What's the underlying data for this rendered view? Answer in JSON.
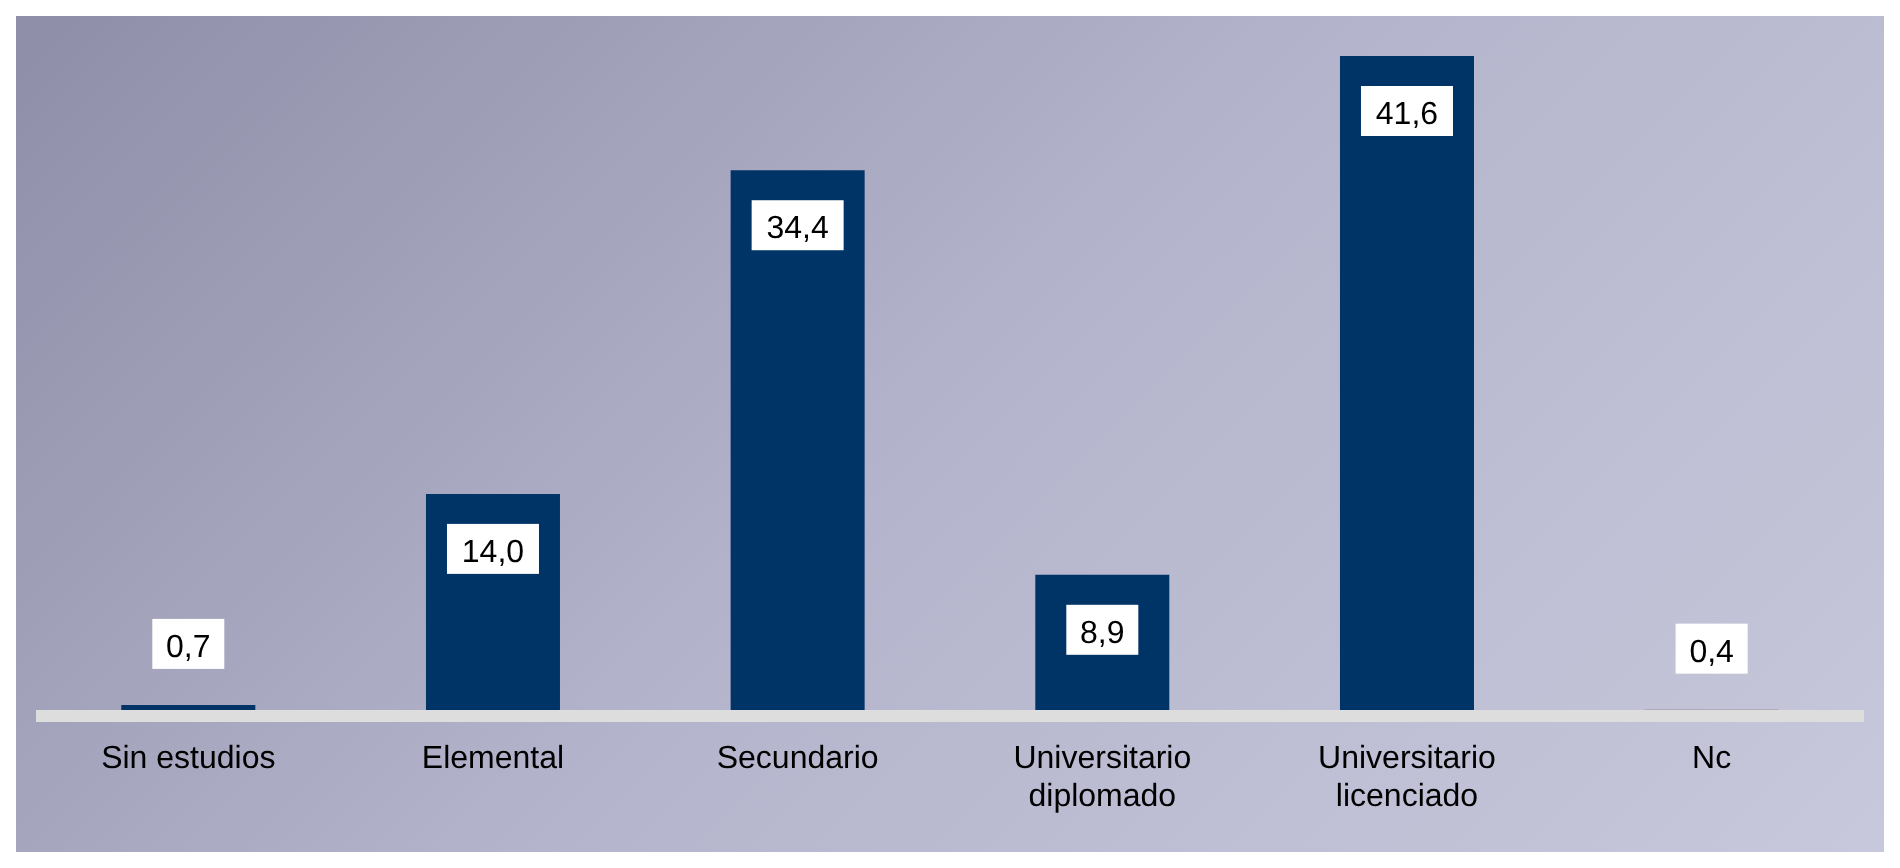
{
  "chart_data": {
    "type": "bar",
    "categories": [
      "Sin estudios",
      "Elemental",
      "Secundario",
      "Universitario diplomado",
      "Universitario licenciado",
      "Nc"
    ],
    "values": [
      0.7,
      14.0,
      34.4,
      8.9,
      41.6,
      0.4
    ],
    "colors": [
      "#003366",
      "#003366",
      "#003366",
      "#003366",
      "#003366",
      "#666666"
    ],
    "value_labels": [
      "0,7",
      "14,0",
      "34,4",
      "8,9",
      "41,6",
      "0,4"
    ]
  }
}
